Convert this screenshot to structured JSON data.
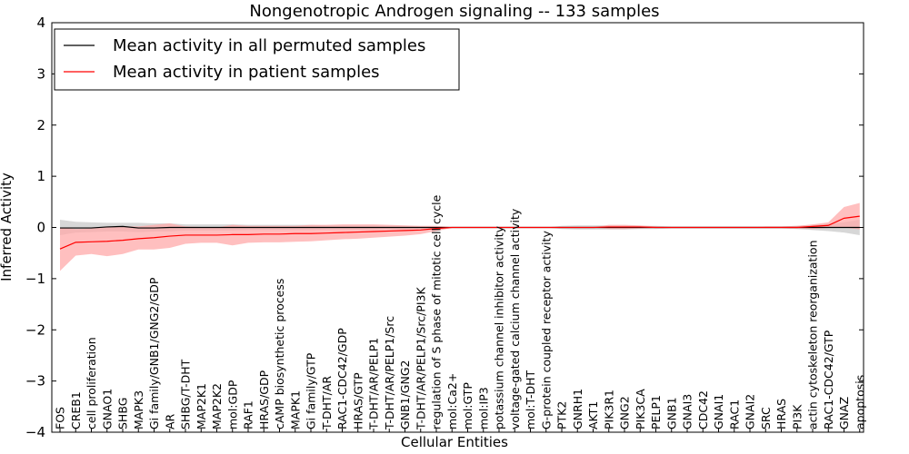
{
  "chart_data": {
    "type": "line",
    "title": "Nongenotropic Androgen signaling -- 133 samples",
    "xlabel": "Cellular Entities",
    "ylabel": "Inferred Activity",
    "ylim": [
      -4,
      4
    ],
    "yticks": [
      "4",
      "3",
      "2",
      "1",
      "0",
      "−1",
      "−2",
      "−3",
      "−4"
    ],
    "ytick_values": [
      4,
      3,
      2,
      1,
      0,
      -1,
      -2,
      -3,
      -4
    ],
    "legend_position": "top-left",
    "grid": false,
    "categories": [
      "FOS",
      "CREB1",
      "cell proliferation",
      "GNAO1",
      "SHBG",
      "MAPK3",
      "Gi family/GNB1/GNG2/GDP",
      "AR",
      "SHBG/T-DHT",
      "MAP2K1",
      "MAP2K2",
      "mol:GDP",
      "RAF1",
      "HRAS/GDP",
      "cAMP biosynthetic process",
      "MAPK1",
      "Gi family/GTP",
      "T-DHT/AR",
      "RAC1-CDC42/GDP",
      "HRAS/GTP",
      "T-DHT/AR/PELP1",
      "T-DHT/AR/PELP1/Src",
      "GNB1/GNG2",
      "T-DHT/AR/PELP1/Src/PI3K",
      "regulation of S phase of mitotic cell cycle",
      "mol:Ca2+",
      "mol:GTP",
      "mol:IP3",
      "potassium channel inhibitor activity",
      "voltage-gated calcium channel activity",
      "mol:T-DHT",
      "G-protein coupled receptor activity",
      "PTK2",
      "GNRH1",
      "AKT1",
      "PIK3R1",
      "GNG2",
      "PIK3CA",
      "PELP1",
      "GNB1",
      "GNAI3",
      "CDC42",
      "GNAI1",
      "RAC1",
      "GNAI2",
      "SRC",
      "HRAS",
      "PI3K",
      "actin cytoskeleton reorganization",
      "RAC1-CDC42/GTP",
      "GNAZ",
      "apoptosis"
    ],
    "series": [
      {
        "name": "Mean activity in all permuted samples",
        "color": "#000000",
        "band_color": "#b0b0b0",
        "values": [
          -0.01,
          -0.01,
          -0.01,
          0.01,
          0.02,
          -0.01,
          -0.01,
          0.0,
          0.0,
          0.0,
          0.0,
          0.0,
          0.0,
          0.0,
          0.0,
          0.0,
          0.0,
          0.0,
          0.0,
          0.0,
          0.0,
          0.0,
          0.0,
          0.0,
          0.0,
          0.0,
          0.0,
          0.0,
          0.0,
          0.0,
          0.0,
          0.0,
          0.0,
          0.0,
          0.0,
          0.0,
          0.0,
          0.0,
          0.0,
          0.0,
          0.0,
          0.0,
          0.0,
          0.0,
          0.0,
          0.0,
          0.0,
          0.0,
          0.0,
          0.0,
          0.0,
          0.0
        ],
        "band_low": [
          -0.15,
          -0.1,
          -0.09,
          -0.08,
          -0.08,
          -0.09,
          -0.08,
          -0.08,
          -0.06,
          -0.06,
          -0.06,
          -0.06,
          -0.05,
          -0.05,
          -0.05,
          -0.05,
          -0.05,
          -0.04,
          -0.04,
          -0.04,
          -0.04,
          -0.03,
          -0.03,
          -0.02,
          -0.01,
          0.0,
          0.0,
          0.0,
          0.0,
          0.0,
          0.0,
          0.0,
          -0.03,
          -0.04,
          -0.04,
          -0.04,
          -0.04,
          -0.03,
          -0.03,
          -0.02,
          -0.02,
          -0.02,
          -0.02,
          -0.02,
          -0.02,
          -0.02,
          -0.02,
          -0.03,
          -0.05,
          -0.07,
          -0.1,
          -0.15
        ],
        "band_high": [
          0.15,
          0.11,
          0.1,
          0.09,
          0.09,
          0.09,
          0.08,
          0.08,
          0.06,
          0.06,
          0.06,
          0.06,
          0.05,
          0.05,
          0.05,
          0.05,
          0.05,
          0.04,
          0.04,
          0.04,
          0.04,
          0.03,
          0.03,
          0.02,
          0.01,
          0.0,
          0.0,
          0.0,
          0.0,
          0.0,
          0.0,
          0.0,
          0.03,
          0.04,
          0.04,
          0.04,
          0.04,
          0.03,
          0.03,
          0.02,
          0.02,
          0.02,
          0.02,
          0.02,
          0.02,
          0.02,
          0.02,
          0.03,
          0.05,
          0.07,
          0.1,
          0.15
        ]
      },
      {
        "name": "Mean activity in patient samples",
        "color": "#ff0000",
        "band_color": "#ffaaaa",
        "values": [
          -0.42,
          -0.29,
          -0.28,
          -0.27,
          -0.25,
          -0.22,
          -0.2,
          -0.17,
          -0.15,
          -0.15,
          -0.15,
          -0.14,
          -0.14,
          -0.13,
          -0.13,
          -0.12,
          -0.12,
          -0.11,
          -0.1,
          -0.09,
          -0.08,
          -0.07,
          -0.06,
          -0.05,
          -0.02,
          0.0,
          0.0,
          0.0,
          0.0,
          0.0,
          0.0,
          0.0,
          0.0,
          0.0,
          0.0,
          0.01,
          0.01,
          0.01,
          0.0,
          0.0,
          0.0,
          0.0,
          0.0,
          0.0,
          0.0,
          0.0,
          0.0,
          0.0,
          0.02,
          0.04,
          0.18,
          0.22
        ],
        "band_low": [
          -0.85,
          -0.55,
          -0.52,
          -0.56,
          -0.52,
          -0.43,
          -0.43,
          -0.4,
          -0.32,
          -0.3,
          -0.3,
          -0.35,
          -0.3,
          -0.29,
          -0.29,
          -0.28,
          -0.27,
          -0.25,
          -0.23,
          -0.22,
          -0.2,
          -0.18,
          -0.16,
          -0.13,
          -0.07,
          -0.01,
          0.0,
          0.0,
          0.0,
          0.0,
          0.0,
          0.0,
          0.0,
          0.0,
          0.0,
          -0.03,
          -0.03,
          -0.02,
          -0.01,
          0.0,
          0.0,
          0.0,
          0.0,
          0.0,
          0.0,
          0.0,
          -0.01,
          -0.02,
          -0.03,
          -0.01,
          0.0,
          -0.04
        ],
        "band_high": [
          0.0,
          -0.03,
          -0.02,
          0.01,
          0.02,
          0.02,
          0.05,
          0.08,
          0.02,
          0.01,
          0.0,
          0.05,
          0.03,
          0.03,
          0.03,
          0.03,
          0.05,
          0.05,
          0.06,
          0.06,
          0.06,
          0.05,
          0.04,
          0.03,
          0.03,
          0.01,
          0.0,
          0.0,
          0.0,
          0.0,
          0.0,
          0.0,
          0.0,
          0.0,
          0.0,
          0.05,
          0.05,
          0.04,
          0.02,
          0.0,
          0.0,
          0.0,
          0.0,
          0.0,
          0.0,
          0.02,
          0.02,
          0.03,
          0.06,
          0.1,
          0.4,
          0.48
        ]
      }
    ]
  }
}
